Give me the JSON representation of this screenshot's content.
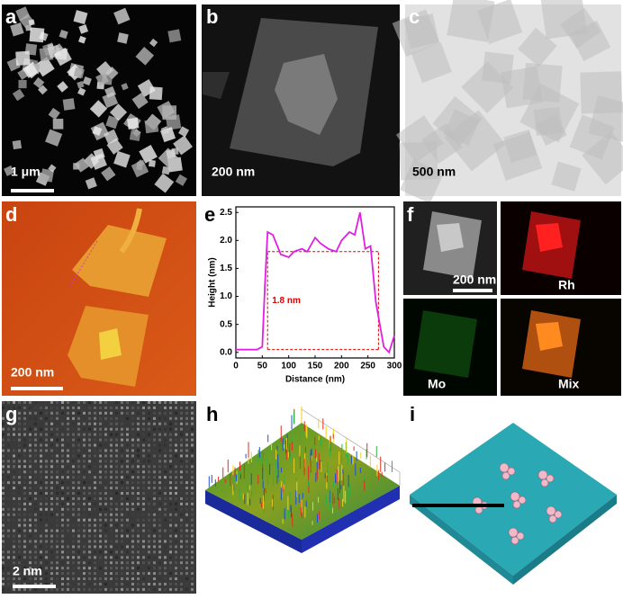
{
  "panels": [
    {
      "label": "a",
      "scale_bar": "1 μm"
    },
    {
      "label": "b",
      "scale_bar": "200 nm"
    },
    {
      "label": "c",
      "scale_bar": "500 nm"
    },
    {
      "label": "d",
      "scale_bar": "200 nm"
    },
    {
      "label": "e"
    },
    {
      "label": "f",
      "scale_bar": "200 nm",
      "maps": [
        "Rh",
        "Mo",
        "Mix"
      ]
    },
    {
      "label": "g",
      "scale_bar": "2 nm"
    },
    {
      "label": "h"
    },
    {
      "label": "i"
    }
  ],
  "chart_data": {
    "type": "line",
    "x_label": "Distance (nm)",
    "y_label": "Height (nm)",
    "x": [
      0,
      20,
      40,
      50,
      55,
      60,
      70,
      85,
      100,
      110,
      125,
      135,
      150,
      160,
      175,
      190,
      200,
      215,
      225,
      235,
      245,
      255,
      265,
      280,
      290,
      300
    ],
    "values": [
      0.05,
      0.05,
      0.05,
      0.1,
      1.2,
      2.15,
      2.1,
      1.75,
      1.7,
      1.8,
      1.85,
      1.8,
      2.05,
      1.95,
      1.85,
      1.8,
      2.0,
      2.15,
      2.1,
      2.5,
      1.85,
      1.9,
      0.9,
      0.1,
      0.0,
      0.3
    ],
    "color": "#e020e0",
    "xlim": [
      0,
      300
    ],
    "xticks": [
      0,
      50,
      100,
      150,
      200,
      250,
      300
    ],
    "ylim": [
      -0.1,
      2.6
    ],
    "yticks": [
      {
        "value": 0,
        "label": "0.0"
      },
      {
        "value": 0.5,
        "label": "0.5"
      },
      {
        "value": 1,
        "label": "1.0"
      },
      {
        "value": 1.5,
        "label": "1.5"
      },
      {
        "value": 2,
        "label": "2.0"
      },
      {
        "value": 2.5,
        "label": "2.5"
      }
    ],
    "annotation": "1.8 nm",
    "guide_levels": [
      0.05,
      1.8
    ],
    "guide_x": [
      60,
      270
    ],
    "guide_color": "#e00000"
  }
}
